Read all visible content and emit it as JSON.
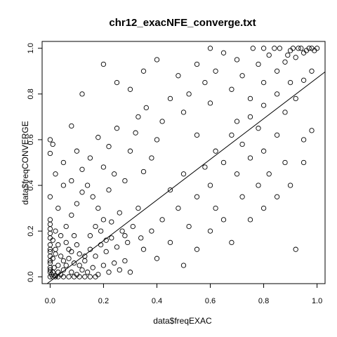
{
  "chart_data": {
    "type": "scatter",
    "title": "chr12_exacNFE_converge.txt",
    "xlabel": "data$freqEXAC",
    "ylabel": "data$freqCONVERGE",
    "xlim": [
      -0.03,
      1.03
    ],
    "ylim": [
      -0.03,
      1.03
    ],
    "x_ticks": [
      "0.0",
      "0.2",
      "0.4",
      "0.6",
      "0.8",
      "1.0"
    ],
    "y_ticks": [
      "0.0",
      "0.2",
      "0.4",
      "0.6",
      "0.8",
      "1.0"
    ],
    "marker": "open-circle",
    "reference_line": {
      "intercept": -0.02,
      "slope": 0.89
    },
    "points": [
      [
        0.0,
        0.0
      ],
      [
        0.005,
        0.01
      ],
      [
        0.01,
        0.02
      ],
      [
        0.0,
        0.03
      ],
      [
        0.02,
        0.005
      ],
      [
        0.015,
        0.04
      ],
      [
        0.03,
        0.02
      ],
      [
        0.0,
        0.06
      ],
      [
        0.04,
        0.01
      ],
      [
        0.01,
        0.08
      ],
      [
        0.05,
        0.03
      ],
      [
        0.02,
        0.1
      ],
      [
        0.06,
        0.05
      ],
      [
        0.0,
        0.12
      ],
      [
        0.08,
        0.02
      ],
      [
        0.03,
        0.14
      ],
      [
        0.07,
        0.08
      ],
      [
        0.1,
        0.01
      ],
      [
        0.01,
        0.16
      ],
      [
        0.09,
        0.06
      ],
      [
        0.12,
        0.03
      ],
      [
        0.04,
        0.18
      ],
      [
        0.11,
        0.1
      ],
      [
        0.14,
        0.02
      ],
      [
        0.02,
        0.2
      ],
      [
        0.13,
        0.07
      ],
      [
        0.16,
        0.04
      ],
      [
        0.06,
        0.22
      ],
      [
        0.15,
        0.12
      ],
      [
        0.18,
        0.01
      ],
      [
        0.0,
        0.25
      ],
      [
        0.17,
        0.09
      ],
      [
        0.2,
        0.05
      ],
      [
        0.08,
        0.27
      ],
      [
        0.19,
        0.14
      ],
      [
        0.22,
        0.02
      ],
      [
        0.03,
        0.3
      ],
      [
        0.21,
        0.11
      ],
      [
        0.24,
        0.06
      ],
      [
        0.1,
        0.32
      ],
      [
        0.23,
        0.17
      ],
      [
        0.26,
        0.03
      ],
      [
        0.0,
        0.35
      ],
      [
        0.25,
        0.13
      ],
      [
        0.28,
        0.07
      ],
      [
        0.12,
        0.37
      ],
      [
        0.27,
        0.2
      ],
      [
        0.3,
        0.02
      ],
      [
        0.05,
        0.4
      ],
      [
        0.29,
        0.15
      ],
      [
        0.0,
        0.6
      ],
      [
        0.01,
        0.58
      ],
      [
        0.0,
        0.54
      ],
      [
        0.08,
        0.66
      ],
      [
        0.02,
        0.45
      ],
      [
        0.15,
        0.52
      ],
      [
        0.18,
        0.61
      ],
      [
        0.2,
        0.48
      ],
      [
        0.22,
        0.57
      ],
      [
        0.25,
        0.65
      ],
      [
        0.28,
        0.42
      ],
      [
        0.3,
        0.55
      ],
      [
        0.32,
        0.63
      ],
      [
        0.35,
        0.46
      ],
      [
        0.33,
        0.7
      ],
      [
        0.38,
        0.52
      ],
      [
        0.4,
        0.6
      ],
      [
        0.42,
        0.68
      ],
      [
        0.36,
        0.74
      ],
      [
        0.45,
        0.78
      ],
      [
        0.3,
        0.82
      ],
      [
        0.25,
        0.85
      ],
      [
        0.12,
        0.8
      ],
      [
        0.2,
        0.93
      ],
      [
        0.35,
        0.9
      ],
      [
        0.4,
        0.95
      ],
      [
        0.48,
        0.88
      ],
      [
        0.5,
        0.72
      ],
      [
        0.52,
        0.8
      ],
      [
        0.55,
        0.93
      ],
      [
        0.58,
        0.85
      ],
      [
        0.6,
        0.76
      ],
      [
        0.62,
        0.9
      ],
      [
        0.65,
        0.98
      ],
      [
        0.68,
        0.82
      ],
      [
        0.7,
        0.95
      ],
      [
        0.72,
        0.88
      ],
      [
        0.75,
        0.78
      ],
      [
        0.78,
        0.93
      ],
      [
        0.8,
        0.85
      ],
      [
        0.82,
        0.97
      ],
      [
        0.85,
        0.9
      ],
      [
        0.88,
        0.94
      ],
      [
        0.9,
        0.99
      ],
      [
        0.92,
        0.96
      ],
      [
        0.94,
        1.0
      ],
      [
        0.96,
        0.99
      ],
      [
        0.98,
        1.0
      ],
      [
        1.0,
        1.0
      ],
      [
        0.99,
        0.99
      ],
      [
        0.97,
        1.0
      ],
      [
        0.95,
        0.98
      ],
      [
        0.93,
        1.0
      ],
      [
        0.91,
        1.0
      ],
      [
        0.89,
        0.97
      ],
      [
        0.86,
        1.0
      ],
      [
        0.84,
        1.0
      ],
      [
        0.8,
        1.0
      ],
      [
        0.76,
        1.0
      ],
      [
        0.6,
        1.0
      ],
      [
        0.55,
        0.62
      ],
      [
        0.5,
        0.45
      ],
      [
        0.45,
        0.38
      ],
      [
        0.42,
        0.25
      ],
      [
        0.48,
        0.3
      ],
      [
        0.52,
        0.22
      ],
      [
        0.55,
        0.35
      ],
      [
        0.58,
        0.48
      ],
      [
        0.6,
        0.4
      ],
      [
        0.62,
        0.55
      ],
      [
        0.65,
        0.5
      ],
      [
        0.68,
        0.62
      ],
      [
        0.7,
        0.68
      ],
      [
        0.72,
        0.58
      ],
      [
        0.75,
        0.7
      ],
      [
        0.78,
        0.65
      ],
      [
        0.8,
        0.75
      ],
      [
        0.85,
        0.8
      ],
      [
        0.88,
        0.72
      ],
      [
        0.9,
        0.85
      ],
      [
        0.92,
        0.78
      ],
      [
        0.95,
        0.86
      ],
      [
        0.98,
        0.9
      ],
      [
        0.7,
        0.45
      ],
      [
        0.75,
        0.52
      ],
      [
        0.8,
        0.55
      ],
      [
        0.85,
        0.62
      ],
      [
        0.62,
        0.3
      ],
      [
        0.65,
        0.25
      ],
      [
        0.72,
        0.35
      ],
      [
        0.78,
        0.4
      ],
      [
        0.82,
        0.45
      ],
      [
        0.88,
        0.5
      ],
      [
        0.95,
        0.6
      ],
      [
        0.98,
        0.64
      ],
      [
        0.6,
        0.2
      ],
      [
        0.68,
        0.15
      ],
      [
        0.75,
        0.25
      ],
      [
        0.8,
        0.3
      ],
      [
        0.85,
        0.35
      ],
      [
        0.9,
        0.4
      ],
      [
        0.92,
        0.12
      ],
      [
        0.95,
        0.5
      ],
      [
        0.55,
        0.12
      ],
      [
        0.5,
        0.05
      ],
      [
        0.45,
        0.15
      ],
      [
        0.4,
        0.08
      ],
      [
        0.38,
        0.2
      ],
      [
        0.35,
        0.12
      ],
      [
        0.33,
        0.3
      ],
      [
        0.05,
        0.5
      ],
      [
        0.08,
        0.42
      ],
      [
        0.1,
        0.55
      ],
      [
        0.12,
        0.47
      ],
      [
        0.14,
        0.4
      ],
      [
        0.16,
        0.35
      ],
      [
        0.18,
        0.3
      ],
      [
        0.2,
        0.25
      ],
      [
        0.22,
        0.38
      ],
      [
        0.24,
        0.45
      ],
      [
        0.06,
        0.15
      ],
      [
        0.07,
        0.12
      ],
      [
        0.09,
        0.18
      ],
      [
        0.04,
        0.09
      ],
      [
        0.03,
        0.05
      ],
      [
        0.02,
        0.12
      ],
      [
        0.05,
        0.07
      ],
      [
        0.08,
        0.11
      ],
      [
        0.1,
        0.14
      ],
      [
        0.11,
        0.05
      ],
      [
        0.13,
        0.09
      ],
      [
        0.15,
        0.18
      ],
      [
        0.17,
        0.22
      ],
      [
        0.19,
        0.2
      ],
      [
        0.21,
        0.16
      ],
      [
        0.23,
        0.24
      ],
      [
        0.26,
        0.28
      ],
      [
        0.28,
        0.18
      ],
      [
        0.31,
        0.22
      ],
      [
        0.34,
        0.17
      ],
      [
        0.0,
        0.02
      ],
      [
        0.0,
        0.04
      ],
      [
        0.0,
        0.07
      ],
      [
        0.0,
        0.09
      ],
      [
        0.0,
        0.11
      ],
      [
        0.0,
        0.14
      ],
      [
        0.0,
        0.17
      ],
      [
        0.0,
        0.19
      ],
      [
        0.0,
        0.21
      ],
      [
        0.0,
        0.23
      ],
      [
        0.01,
        0.0
      ],
      [
        0.02,
        0.0
      ],
      [
        0.03,
        0.0
      ],
      [
        0.05,
        0.0
      ],
      [
        0.07,
        0.0
      ],
      [
        0.09,
        0.0
      ],
      [
        0.11,
        0.0
      ],
      [
        0.13,
        0.0
      ],
      [
        0.15,
        0.0
      ],
      [
        0.17,
        0.0
      ]
    ]
  }
}
